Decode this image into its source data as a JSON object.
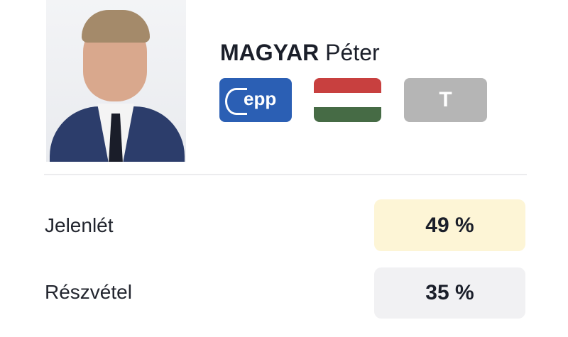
{
  "profile": {
    "last_name": "MAGYAR",
    "first_name": "Péter",
    "badges": {
      "party_group": "epp",
      "party_group_color": "#2b5fb4",
      "country_flag": "hungary-flag",
      "flag_colors": [
        "#c8403f",
        "#ffffff",
        "#466b45"
      ],
      "letter": "T"
    }
  },
  "stats": [
    {
      "label": "Jelenlét",
      "value": "49 %",
      "bg": "#fdf5d6"
    },
    {
      "label": "Részvétel",
      "value": "35 %",
      "bg": "#f1f1f3"
    }
  ]
}
